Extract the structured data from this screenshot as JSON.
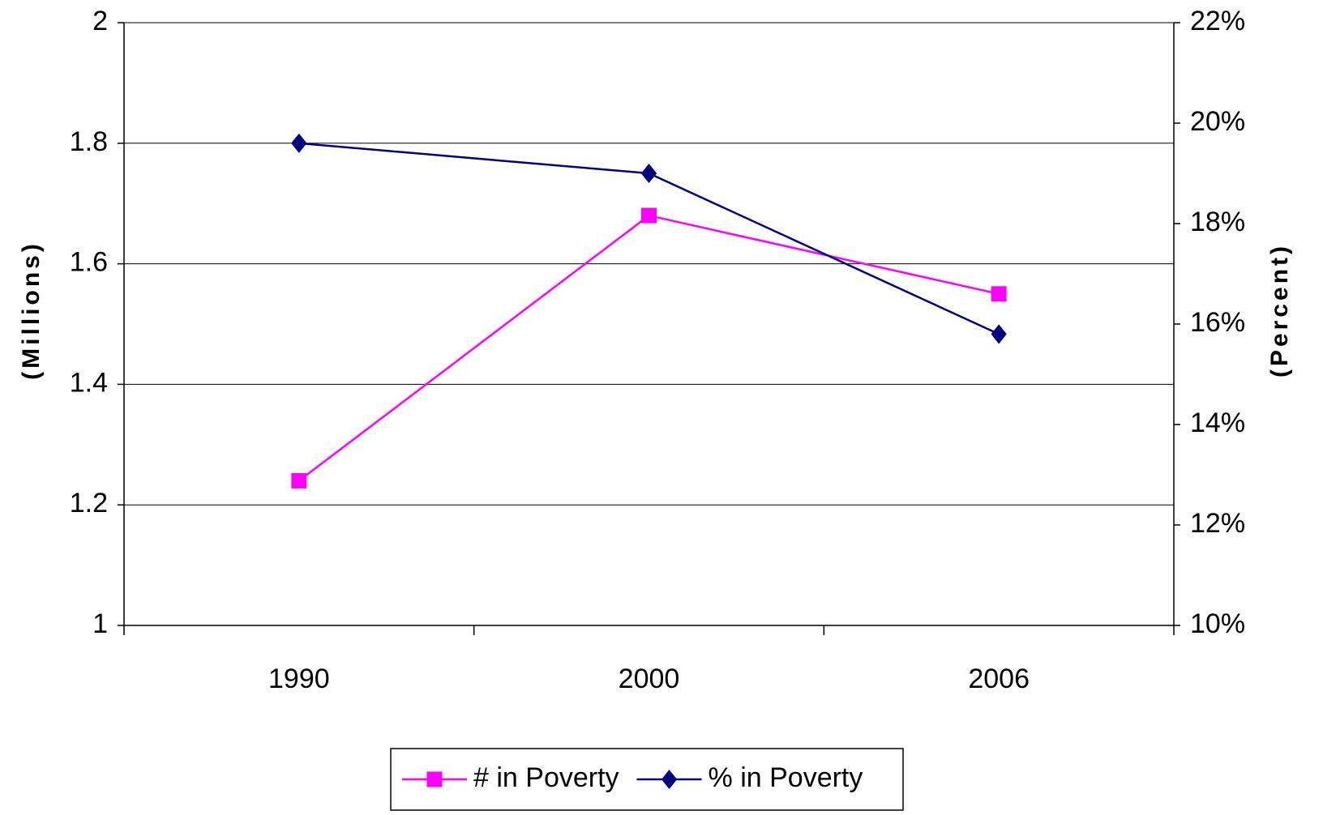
{
  "chart_data": {
    "type": "line",
    "categories": [
      "1990",
      "2000",
      "2006"
    ],
    "ylabel": "(Millions)",
    "y2label": "(Percent)",
    "ylim": [
      1,
      2
    ],
    "yticks": [
      1,
      1.2,
      1.4,
      1.6,
      1.8,
      2
    ],
    "y2lim": [
      10,
      22
    ],
    "y2ticks": [
      {
        "value": 10,
        "label": "10%"
      },
      {
        "value": 12,
        "label": "12%"
      },
      {
        "value": 14,
        "label": "14%"
      },
      {
        "value": 16,
        "label": "16%"
      },
      {
        "value": 18,
        "label": "18%"
      },
      {
        "value": 20,
        "label": "20%"
      },
      {
        "value": 22,
        "label": "22%"
      }
    ],
    "grid": true,
    "legend": "bottom",
    "series": [
      {
        "name": "# in Poverty",
        "color": "#ff00ff",
        "marker": "square",
        "values": [
          1.24,
          1.68,
          1.55
        ]
      },
      {
        "name": "% in Poverty",
        "color": "#000080",
        "marker": "diamond",
        "axis": "y2",
        "values": [
          19.6,
          19.0,
          15.8
        ]
      }
    ]
  }
}
